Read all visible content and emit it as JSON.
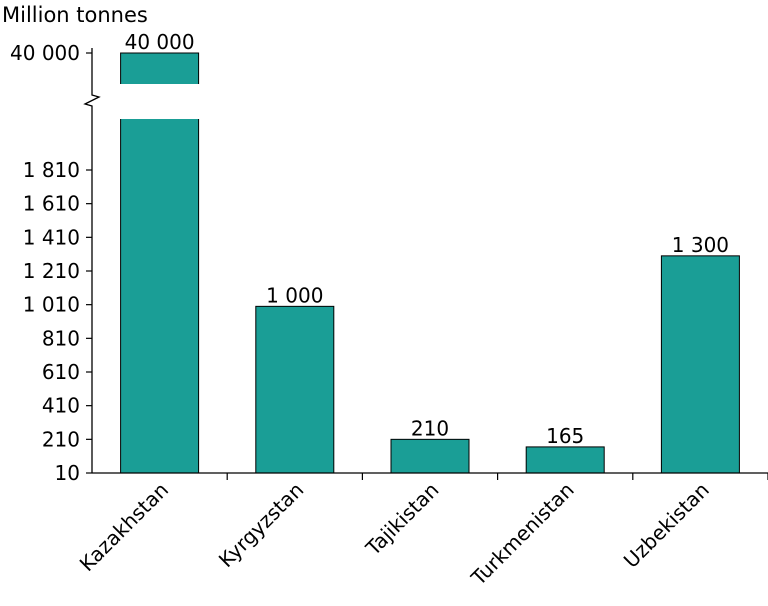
{
  "chart_data": {
    "type": "bar",
    "ylabel": "Million tonnes",
    "categories": [
      "Kazakhstan",
      "Kyrgyzstan",
      "Tajikistan",
      "Turkmenistan",
      "Uzbekistan"
    ],
    "values": [
      40000,
      1000,
      210,
      165,
      1300
    ],
    "data_labels": [
      "40 000",
      "1 000",
      "210",
      "165",
      "1 300"
    ],
    "y_ticks": [
      {
        "value": 10,
        "label": "10"
      },
      {
        "value": 210,
        "label": "210"
      },
      {
        "value": 410,
        "label": "410"
      },
      {
        "value": 610,
        "label": "610"
      },
      {
        "value": 810,
        "label": "810"
      },
      {
        "value": 1010,
        "label": "1 010"
      },
      {
        "value": 1210,
        "label": "1 210"
      },
      {
        "value": 1410,
        "label": "1 410"
      },
      {
        "value": 1610,
        "label": "1 610"
      },
      {
        "value": 1810,
        "label": "1 810"
      },
      {
        "value": 40000,
        "label": "40 000"
      }
    ],
    "ylim": [
      10,
      1810
    ],
    "y_axis_break": true,
    "bar_color": "#1a9e96",
    "grid": false,
    "legend": "none"
  }
}
